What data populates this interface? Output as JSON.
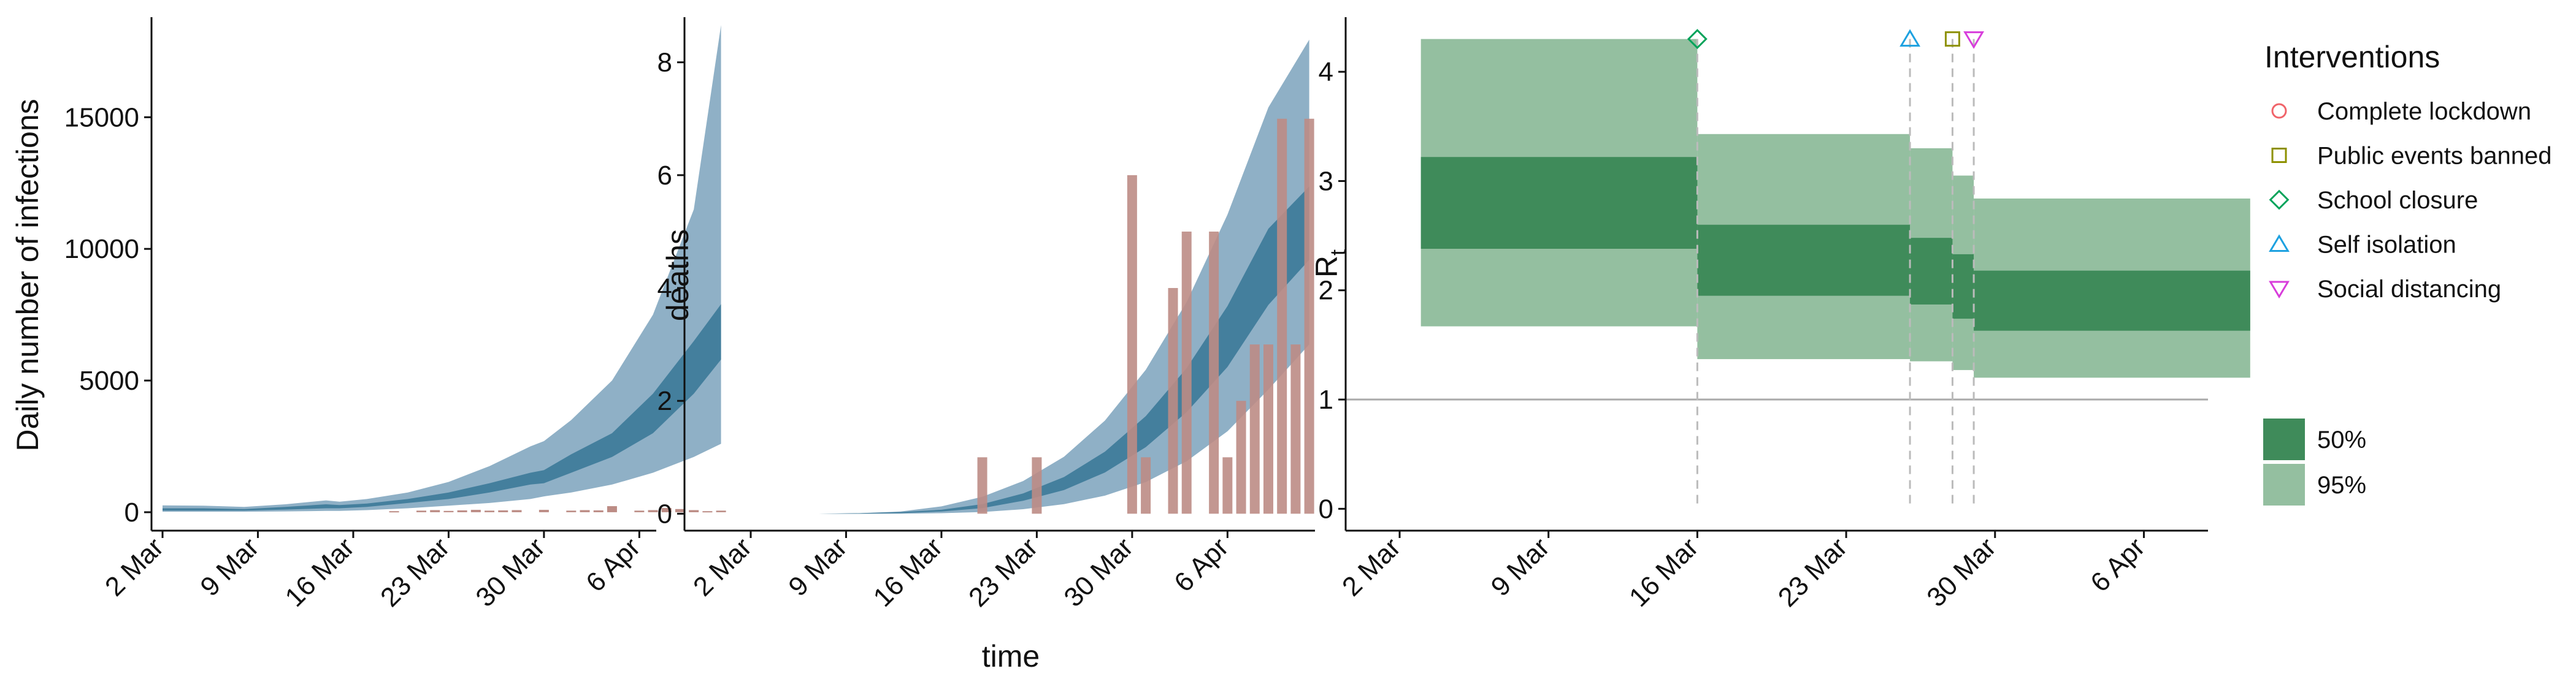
{
  "chart_data": [
    {
      "id": "infections",
      "type": "area",
      "title": "",
      "xlabel": "",
      "ylabel": "Daily number of infections",
      "x_tick_labels": [
        "2 Mar",
        "9 Mar",
        "16 Mar",
        "23 Mar",
        "30 Mar",
        "6 Apr"
      ],
      "y_tick_labels": [
        "0",
        "5000",
        "10000",
        "15000"
      ],
      "y_ticks": [
        0,
        5000,
        10000,
        15000
      ],
      "x_range_days": [
        0,
        42
      ],
      "ylim": [
        -700,
        18800
      ],
      "x": [
        0,
        3,
        6,
        9,
        12,
        13,
        15,
        18,
        21,
        24,
        27,
        28,
        30,
        33,
        36,
        39,
        41
      ],
      "band95": {
        "lower": [
          20,
          20,
          20,
          30,
          50,
          50,
          80,
          150,
          250,
          350,
          500,
          600,
          750,
          1050,
          1500,
          2100,
          2600
        ],
        "upper": [
          260,
          250,
          200,
          300,
          450,
          400,
          500,
          750,
          1150,
          1750,
          2500,
          2700,
          3500,
          5000,
          7500,
          11500,
          18500
        ]
      },
      "band50": {
        "lower": [
          60,
          60,
          60,
          100,
          150,
          150,
          200,
          350,
          500,
          750,
          1050,
          1100,
          1500,
          2100,
          3000,
          4500,
          5800
        ],
        "upper": [
          150,
          150,
          120,
          200,
          300,
          270,
          330,
          500,
          750,
          1100,
          1500,
          1600,
          2200,
          3000,
          4500,
          6500,
          7900
        ]
      },
      "observed_bar_days": [
        17,
        19,
        20,
        21,
        22,
        23,
        24,
        25,
        26,
        28,
        30,
        31,
        32,
        33,
        35,
        36,
        37,
        38,
        39,
        40,
        41
      ],
      "observed_bar_values": [
        40,
        60,
        80,
        50,
        70,
        90,
        60,
        70,
        80,
        90,
        60,
        80,
        70,
        230,
        60,
        80,
        160,
        120,
        80,
        40,
        60
      ]
    },
    {
      "id": "deaths",
      "type": "area",
      "title": "",
      "xlabel": "time",
      "ylabel": "deaths",
      "x_tick_labels": [
        "2 Mar",
        "9 Mar",
        "16 Mar",
        "23 Mar",
        "30 Mar",
        "6 Apr"
      ],
      "y_tick_labels": [
        "0",
        "2",
        "4",
        "6",
        "8"
      ],
      "y_ticks": [
        0,
        2,
        4,
        6,
        8
      ],
      "x_range_days": [
        0,
        42
      ],
      "ylim": [
        -0.3,
        8.8
      ],
      "x": [
        5,
        8,
        11,
        14,
        17,
        20,
        23,
        26,
        29,
        32,
        35,
        38,
        41
      ],
      "band95": {
        "lower": [
          0,
          0,
          0,
          0.01,
          0.03,
          0.08,
          0.17,
          0.32,
          0.56,
          0.93,
          1.46,
          2.2,
          3.0
        ],
        "upper": [
          0,
          0.01,
          0.04,
          0.13,
          0.3,
          0.58,
          1.01,
          1.65,
          2.55,
          3.75,
          5.3,
          7.2,
          8.4
        ]
      },
      "band50": {
        "lower": [
          0,
          0,
          0.01,
          0.04,
          0.1,
          0.23,
          0.42,
          0.73,
          1.18,
          1.8,
          2.6,
          3.7,
          4.5
        ],
        "upper": [
          0,
          0.01,
          0.03,
          0.07,
          0.17,
          0.36,
          0.65,
          1.1,
          1.73,
          2.58,
          3.68,
          5.05,
          5.8
        ]
      },
      "bars": {
        "days": [
          17,
          21,
          28,
          29,
          31,
          32,
          34,
          35,
          36,
          37,
          38,
          39,
          40,
          41
        ],
        "values": [
          1,
          1,
          6,
          1,
          4,
          5,
          5,
          1,
          2,
          3,
          3,
          7,
          3,
          7
        ]
      }
    },
    {
      "id": "Rt",
      "type": "area",
      "title": "",
      "xlabel": "",
      "ylabel": "R",
      "ylabel_subscript": "t",
      "x_tick_labels": [
        "2 Mar",
        "9 Mar",
        "16 Mar",
        "23 Mar",
        "30 Mar",
        "6 Apr"
      ],
      "y_tick_labels": [
        "0",
        "1",
        "2",
        "3",
        "4"
      ],
      "y_ticks": [
        0,
        1,
        2,
        3,
        4
      ],
      "x_range_days": [
        0,
        42
      ],
      "ylim": [
        -0.2,
        4.5
      ],
      "reference_line_y": 1,
      "segments": [
        {
          "x0": 1,
          "x1": 14,
          "lo95": 1.67,
          "hi95": 4.3,
          "lo50": 2.38,
          "hi50": 3.22
        },
        {
          "x0": 14,
          "x1": 24,
          "lo95": 1.37,
          "hi95": 3.43,
          "lo50": 1.95,
          "hi50": 2.6
        },
        {
          "x0": 24,
          "x1": 26,
          "lo95": 1.35,
          "hi95": 3.3,
          "lo50": 1.87,
          "hi50": 2.48
        },
        {
          "x0": 26,
          "x1": 27,
          "lo95": 1.27,
          "hi95": 3.05,
          "lo50": 1.74,
          "hi50": 2.33
        },
        {
          "x0": 27,
          "x1": 40,
          "lo95": 1.2,
          "hi95": 2.84,
          "lo50": 1.63,
          "hi50": 2.18
        }
      ],
      "interventions": [
        {
          "name": "School closure",
          "day": 14,
          "marker": "diamond",
          "color": "#00a35a"
        },
        {
          "name": "Self isolation",
          "day": 24,
          "marker": "triangle-up",
          "color": "#1da1e0"
        },
        {
          "name": "Public events banned",
          "day": 26,
          "marker": "square",
          "color": "#8e9100"
        },
        {
          "name": "Social distancing",
          "day": 27,
          "marker": "triangle-down",
          "color": "#d83ddb"
        }
      ]
    }
  ],
  "legend": {
    "title": "Interventions",
    "items": [
      {
        "label": "Complete lockdown",
        "marker": "circle",
        "color": "#f0646a"
      },
      {
        "label": "Public events banned",
        "marker": "square",
        "color": "#8e9100"
      },
      {
        "label": "School closure",
        "marker": "diamond",
        "color": "#00a35a"
      },
      {
        "label": "Self isolation",
        "marker": "triangle-up",
        "color": "#1da1e0"
      },
      {
        "label": "Social distancing",
        "marker": "triangle-down",
        "color": "#d83ddb"
      }
    ],
    "bands": [
      {
        "label": "50%",
        "color": "#3f8b5a"
      },
      {
        "label": "95%",
        "color": "#94bfa0"
      }
    ]
  },
  "colors": {
    "blue95": "#8fb0c6",
    "blue50": "#447f9d",
    "bar": "#bc8c85",
    "green95": "#94bfa0",
    "green50": "#3f8b5a",
    "axis": "#111111",
    "refline": "#aaaaaa",
    "dashline": "#bbbbbb"
  }
}
